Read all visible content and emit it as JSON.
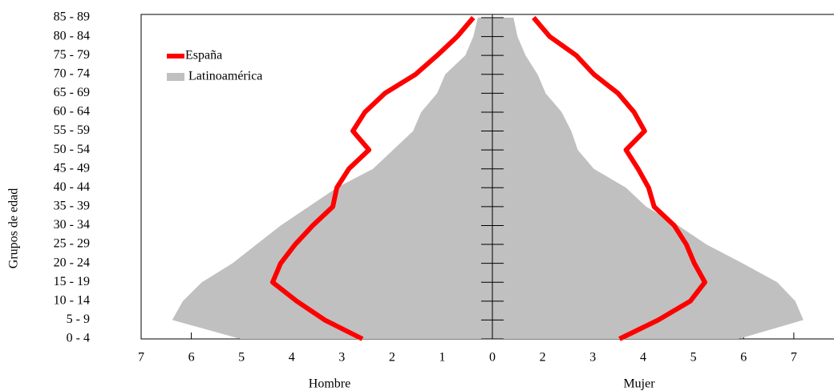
{
  "chart_data": {
    "type": "pyramid",
    "y_title": "Grupos de edad",
    "x_title": "Hombre",
    "x2_title": "Mujer",
    "categories": [
      "0 - 4",
      "5 - 9",
      "10 - 14",
      "15 - 19",
      "20 - 24",
      "25 - 29",
      "30 - 34",
      "35 - 39",
      "40 - 44",
      "45 - 49",
      "50 - 54",
      "55 - 59",
      "60 - 64",
      "65 - 69",
      "70 - 74",
      "75 - 79",
      "80 - 84",
      "85 - 89"
    ],
    "xlim": [
      7,
      0
    ],
    "xticks": [
      7,
      6,
      5,
      4,
      3,
      2,
      1,
      0
    ],
    "x2lim": [
      1,
      7.8
    ],
    "x2ticks": [
      2,
      3,
      4,
      5,
      6,
      7
    ],
    "series": [
      {
        "name": "Latinoamérica",
        "color": "#c0c0c0",
        "style": "area",
        "hombre": [
          5.02,
          6.38,
          6.17,
          5.79,
          5.18,
          4.7,
          4.22,
          3.66,
          3.1,
          2.38,
          1.98,
          1.58,
          1.42,
          1.1,
          0.94,
          0.54,
          0.38,
          0.29
        ],
        "mujer": [
          5.9,
          7.19,
          7.03,
          6.67,
          5.98,
          5.26,
          4.7,
          4.06,
          3.66,
          3.02,
          2.7,
          2.57,
          2.38,
          2.06,
          1.9,
          1.66,
          1.5,
          1.42
        ]
      },
      {
        "name": "España",
        "color": "#ff0000",
        "style": "line",
        "hombre": [
          2.59,
          3.34,
          3.9,
          4.38,
          4.22,
          3.93,
          3.58,
          3.18,
          3.1,
          2.86,
          2.46,
          2.78,
          2.54,
          2.14,
          1.53,
          1.1,
          0.7,
          0.38
        ],
        "mujer": [
          3.53,
          4.3,
          4.94,
          5.23,
          5.02,
          4.86,
          4.62,
          4.22,
          4.11,
          3.9,
          3.66,
          4.03,
          3.82,
          3.5,
          3.02,
          2.67,
          2.14,
          1.82
        ]
      }
    ],
    "legend_order": [
      1,
      0
    ]
  }
}
